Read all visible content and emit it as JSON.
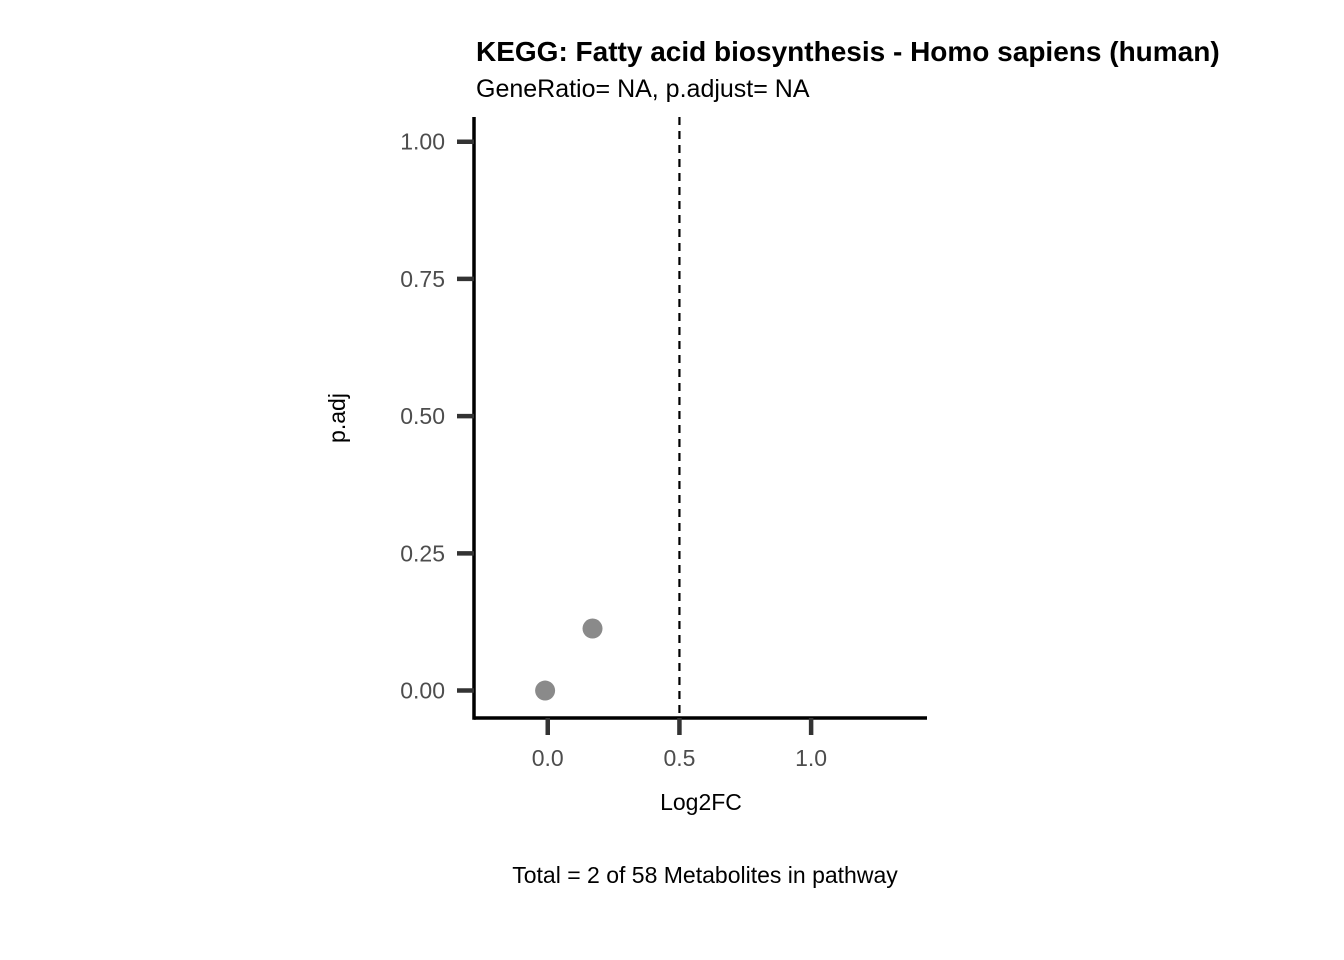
{
  "chart_data": {
    "type": "scatter",
    "title": "KEGG: Fatty acid biosynthesis - Homo sapiens (human)",
    "subtitle": "GeneRatio= NA, p.adjust= NA",
    "xlabel": "Log2FC",
    "ylabel": "p.adj",
    "caption": "Total = 2 of 58 Metabolites in pathway",
    "xlim": [
      -0.28,
      1.44
    ],
    "ylim": [
      -0.05,
      1.045
    ],
    "x_ticks": [
      0.0,
      0.5,
      1.0
    ],
    "x_tick_labels": [
      "0.0",
      "0.5",
      "1.0"
    ],
    "y_ticks": [
      0.0,
      0.25,
      0.5,
      0.75,
      1.0
    ],
    "y_tick_labels": [
      "0.00",
      "0.25",
      "0.50",
      "0.75",
      "1.00"
    ],
    "points": [
      {
        "x": -0.01,
        "y": 0.0
      },
      {
        "x": 0.17,
        "y": 0.113
      }
    ],
    "vline": {
      "x": 0.5,
      "style": "dashed"
    },
    "grid": false,
    "point_color": "#8a8a8a",
    "axis_color": "#000000",
    "tick_color": "#333333"
  }
}
